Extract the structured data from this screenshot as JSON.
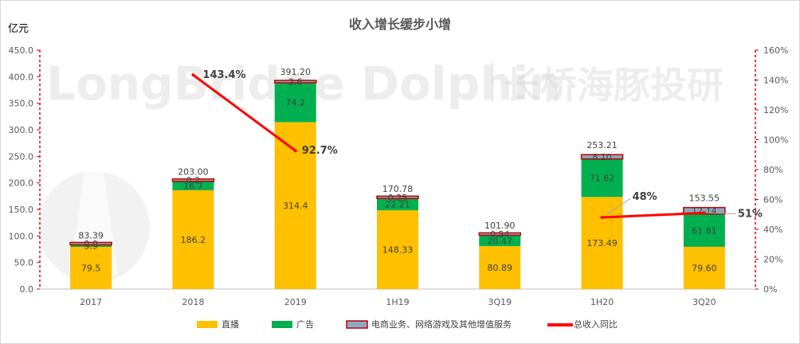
{
  "chart_data": {
    "type": "bar",
    "title": "收入增长缓步小增",
    "ylabel": "亿元",
    "categories": [
      "2017",
      "2018",
      "2019",
      "1H19",
      "3Q19",
      "1H20",
      "3Q20"
    ],
    "series": [
      {
        "name": "直播",
        "values": [
          79.5,
          186.2,
          314.4,
          148.33,
          80.89,
          173.49,
          79.6
        ],
        "labels": [
          "79.5",
          "186.2",
          "314.4",
          "148.33",
          "80.89",
          "173.49",
          "79.60"
        ],
        "color": "#FFC000"
      },
      {
        "name": "广告",
        "values": [
          3.9,
          16.7,
          74.2,
          22.21,
          20.47,
          71.62,
          61.81
        ],
        "labels": [
          "3.9",
          "16.7",
          "74.2",
          "22.21",
          "20.47",
          "71.62",
          "61.81"
        ],
        "color": "#00B050"
      },
      {
        "name": "电商业务、网络游戏及其他增值服务",
        "values": [
          0.0,
          0.2,
          2.6,
          0.25,
          0.54,
          8.1,
          12.14
        ],
        "labels": [
          "0.0",
          "0.2",
          "2.6",
          "0.25",
          "0.54",
          "8.10",
          "12.14"
        ],
        "color": "#8EA9C1",
        "border": "#C00000"
      }
    ],
    "totals": [
      "83.39",
      "203.00",
      "391.20",
      "170.78",
      "101.90",
      "253.21",
      "153.55"
    ],
    "line": {
      "name": "总收入同比",
      "color": "#FF0000",
      "points": [
        {
          "category": "2018",
          "value": 143.4,
          "label": "143.4%"
        },
        {
          "category": "2019",
          "value": 92.7,
          "label": "92.7%"
        },
        {
          "category": "1H20",
          "value": 48,
          "label": "48%"
        },
        {
          "category": "3Q20",
          "value": 51,
          "label": "51%"
        }
      ]
    },
    "ylim": [
      0,
      450
    ],
    "yticks": [
      "0.0",
      "50.0",
      "100.0",
      "150.0",
      "200.0",
      "250.0",
      "300.0",
      "350.0",
      "400.0",
      "450.0"
    ],
    "y2lim": [
      0,
      160
    ],
    "y2ticks": [
      "0%",
      "20%",
      "40%",
      "60%",
      "80%",
      "100%",
      "120%",
      "140%",
      "160%"
    ],
    "legend_position": "bottom",
    "watermark": "LongBridge Dolphin | 长桥海豚投研"
  }
}
